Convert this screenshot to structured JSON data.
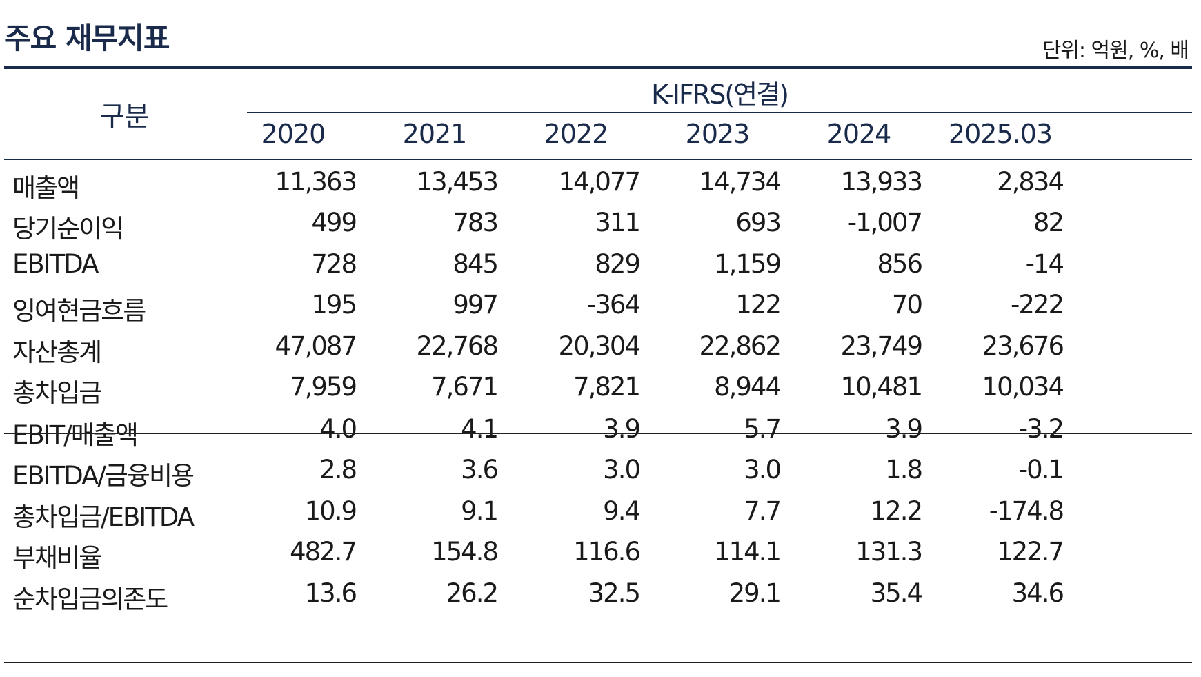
{
  "title": "주요 재무지표",
  "unit": "단위: 억원, %, 배",
  "header": {
    "category": "구분",
    "group": "K-IFRS(연결)",
    "years": [
      "2020",
      "2021",
      "2022",
      "2023",
      "2024",
      "2025.03"
    ]
  },
  "rows": [
    {
      "label": "매출액",
      "values": [
        "11,363",
        "13,453",
        "14,077",
        "14,734",
        "13,933",
        "2,834"
      ]
    },
    {
      "label": "당기순이익",
      "values": [
        "499",
        "783",
        "311",
        "693",
        "-1,007",
        "82"
      ]
    },
    {
      "label": "EBITDA",
      "values": [
        "728",
        "845",
        "829",
        "1,159",
        "856",
        "-14"
      ]
    },
    {
      "label": "잉여현금흐름",
      "values": [
        "195",
        "997",
        "-364",
        "122",
        "70",
        "-222"
      ]
    },
    {
      "label": "자산총계",
      "values": [
        "47,087",
        "22,768",
        "20,304",
        "22,862",
        "23,749",
        "23,676"
      ]
    },
    {
      "label": "총차입금",
      "values": [
        "7,959",
        "7,671",
        "7,821",
        "8,944",
        "10,481",
        "10,034"
      ]
    },
    {
      "label": "EBIT/매출액",
      "values": [
        "4.0",
        "4.1",
        "3.9",
        "5.7",
        "3.9",
        "-3.2"
      ]
    },
    {
      "label": "EBITDA/금융비용",
      "values": [
        "2.8",
        "3.6",
        "3.0",
        "3.0",
        "1.8",
        "-0.1"
      ]
    },
    {
      "label": "총차입금/EBITDA",
      "values": [
        "10.9",
        "9.1",
        "9.4",
        "7.7",
        "12.2",
        "-174.8"
      ]
    },
    {
      "label": "부채비율",
      "values": [
        "482.7",
        "154.8",
        "116.6",
        "114.1",
        "131.3",
        "122.7"
      ]
    },
    {
      "label": "순차입금의존도",
      "values": [
        "13.6",
        "26.2",
        "32.5",
        "29.1",
        "35.4",
        "34.6"
      ]
    }
  ]
}
